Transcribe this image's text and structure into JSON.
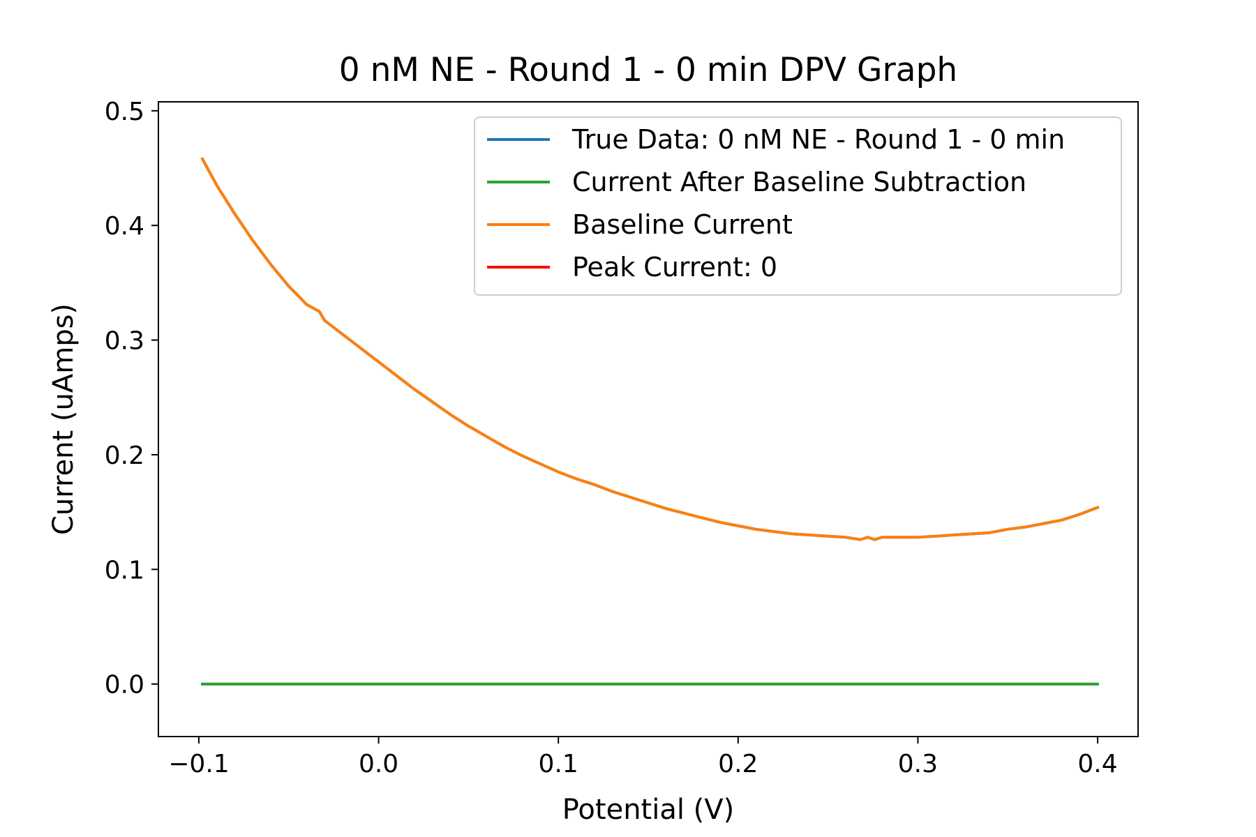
{
  "chart_data": {
    "type": "line",
    "title": "0 nM NE - Round 1 - 0 min DPV Graph",
    "xlabel": "Potential (V)",
    "ylabel": "Current (uAmps)",
    "xlim": [
      -0.1225,
      0.4225
    ],
    "ylim": [
      -0.0458,
      0.5078
    ],
    "xticks": [
      -0.1,
      0.0,
      0.1,
      0.2,
      0.3,
      0.4
    ],
    "xtick_labels": [
      "−0.1",
      "0.0",
      "0.1",
      "0.2",
      "0.3",
      "0.4"
    ],
    "yticks": [
      0.0,
      0.1,
      0.2,
      0.3,
      0.4,
      0.5
    ],
    "ytick_labels": [
      "0.0",
      "0.1",
      "0.2",
      "0.3",
      "0.4",
      "0.5"
    ],
    "grid": false,
    "legend_position": "upper right",
    "series": [
      {
        "name": "True Data: 0 nM NE - Round 1 - 0 min",
        "color": "#1f77b4",
        "x": [
          -0.098,
          -0.09,
          -0.08,
          -0.07,
          -0.06,
          -0.05,
          -0.04,
          -0.033,
          -0.03,
          -0.02,
          -0.01,
          0.0,
          0.01,
          0.02,
          0.03,
          0.04,
          0.05,
          0.06,
          0.07,
          0.08,
          0.09,
          0.1,
          0.11,
          0.12,
          0.13,
          0.14,
          0.15,
          0.16,
          0.17,
          0.18,
          0.19,
          0.2,
          0.21,
          0.22,
          0.23,
          0.24,
          0.25,
          0.26,
          0.268,
          0.272,
          0.276,
          0.28,
          0.29,
          0.3,
          0.31,
          0.32,
          0.33,
          0.34,
          0.35,
          0.36,
          0.37,
          0.38,
          0.39,
          0.4
        ],
        "y": [
          0.458,
          0.435,
          0.41,
          0.387,
          0.366,
          0.347,
          0.331,
          0.325,
          0.317,
          0.305,
          0.293,
          0.281,
          0.269,
          0.257,
          0.246,
          0.235,
          0.225,
          0.216,
          0.207,
          0.199,
          0.192,
          0.185,
          0.179,
          0.174,
          0.168,
          0.163,
          0.158,
          0.153,
          0.149,
          0.145,
          0.141,
          0.138,
          0.135,
          0.133,
          0.131,
          0.13,
          0.129,
          0.128,
          0.126,
          0.128,
          0.126,
          0.128,
          0.128,
          0.128,
          0.129,
          0.13,
          0.131,
          0.132,
          0.135,
          0.137,
          0.14,
          0.143,
          0.148,
          0.154
        ]
      },
      {
        "name": "Current After Baseline Subtraction",
        "color": "#2ca02c",
        "x": [
          -0.098,
          0.4
        ],
        "y": [
          0.0,
          0.0
        ]
      },
      {
        "name": "Baseline Current",
        "color": "#ff7f0e",
        "x": [
          -0.098,
          -0.09,
          -0.08,
          -0.07,
          -0.06,
          -0.05,
          -0.04,
          -0.033,
          -0.03,
          -0.02,
          -0.01,
          0.0,
          0.01,
          0.02,
          0.03,
          0.04,
          0.05,
          0.06,
          0.07,
          0.08,
          0.09,
          0.1,
          0.11,
          0.12,
          0.13,
          0.14,
          0.15,
          0.16,
          0.17,
          0.18,
          0.19,
          0.2,
          0.21,
          0.22,
          0.23,
          0.24,
          0.25,
          0.26,
          0.268,
          0.272,
          0.276,
          0.28,
          0.29,
          0.3,
          0.31,
          0.32,
          0.33,
          0.34,
          0.35,
          0.36,
          0.37,
          0.38,
          0.39,
          0.4
        ],
        "y": [
          0.458,
          0.435,
          0.41,
          0.387,
          0.366,
          0.347,
          0.331,
          0.325,
          0.317,
          0.305,
          0.293,
          0.281,
          0.269,
          0.257,
          0.246,
          0.235,
          0.225,
          0.216,
          0.207,
          0.199,
          0.192,
          0.185,
          0.179,
          0.174,
          0.168,
          0.163,
          0.158,
          0.153,
          0.149,
          0.145,
          0.141,
          0.138,
          0.135,
          0.133,
          0.131,
          0.13,
          0.129,
          0.128,
          0.126,
          0.128,
          0.126,
          0.128,
          0.128,
          0.128,
          0.129,
          0.13,
          0.131,
          0.132,
          0.135,
          0.137,
          0.14,
          0.143,
          0.148,
          0.154
        ]
      },
      {
        "name": "Peak Current: 0",
        "color": "#ff0000",
        "x": [],
        "y": []
      }
    ]
  }
}
